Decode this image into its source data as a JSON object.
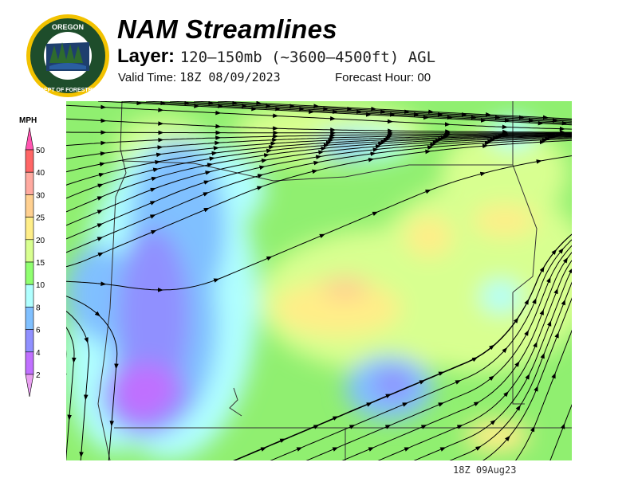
{
  "logo": {
    "text_top": "OREGON",
    "text_bottom": "DEPARTMENT OF FORESTRY"
  },
  "header": {
    "title": "NAM Streamlines",
    "layer_label": "Layer:",
    "layer_value": "120–150mb (~3600–4500ft) AGL",
    "valid_label": "Valid Time:",
    "valid_value": "18Z 08/09/2023",
    "forecast_label": "Forecast Hour:",
    "forecast_value": "00"
  },
  "legend": {
    "unit": "MPH",
    "ticks": [
      "50",
      "40",
      "30",
      "25",
      "20",
      "15",
      "10",
      "8",
      "6",
      "4",
      "2"
    ],
    "colors": {
      "above_50": "#ff55b0",
      "40-50": "#ff6666",
      "30-40": "#ffaaa0",
      "25-30": "#ffd090",
      "20-25": "#ffee88",
      "15-20": "#d8ff90",
      "10-15": "#90ff70",
      "8-10": "#b0ffff",
      "6-8": "#80c0ff",
      "4-6": "#9090ff",
      "2-4": "#c070ff",
      "below_2": "#e8a0f0"
    }
  },
  "footer": {
    "timestamp": "18Z 09Aug23"
  }
}
